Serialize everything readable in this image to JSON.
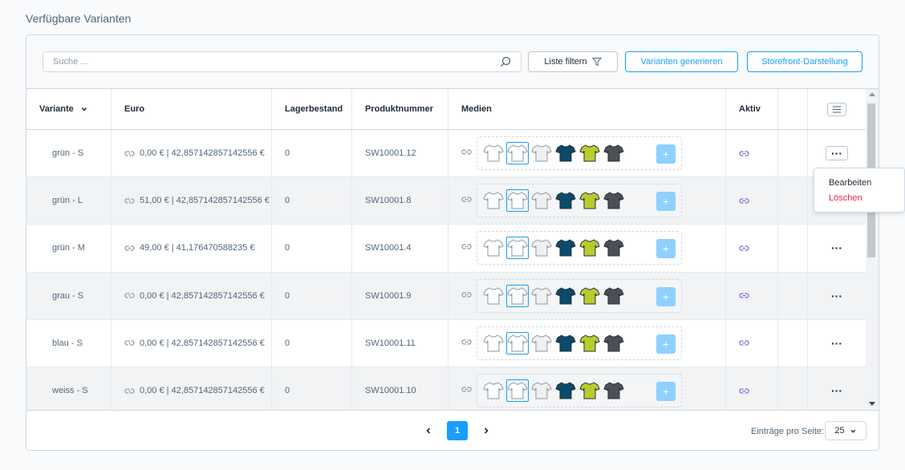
{
  "section_title": "Verfügbare Varianten",
  "search": {
    "placeholder": "Suche ...",
    "value": ""
  },
  "toolbar": {
    "filter_label": "Liste filtern",
    "generate_label": "Varianten generieren",
    "storefront_label": "Storefront-Darstellung"
  },
  "columns": {
    "variant": "Variante",
    "price": "Euro",
    "stock": "Lagerbestand",
    "number": "Produktnummer",
    "media": "Medien",
    "active": "Aktiv"
  },
  "rows": [
    {
      "variant": "grün - S",
      "price": "0,00 € | 42,857142857142556 €",
      "stock": "0",
      "number": "SW10001.12",
      "price_inherited": false
    },
    {
      "variant": "grün - L",
      "price": "51,00 € | 42,857142857142556 €",
      "stock": "0",
      "number": "SW10001.8",
      "price_inherited": false
    },
    {
      "variant": "grün - M",
      "price": "49,00 € | 41,176470588235 €",
      "stock": "0",
      "number": "SW10001.4",
      "price_inherited": true
    },
    {
      "variant": "grau - S",
      "price": "0,00 € | 42,857142857142556 €",
      "stock": "0",
      "number": "SW10001.9",
      "price_inherited": false
    },
    {
      "variant": "blau - S",
      "price": "0,00 € | 42,857142857142556 €",
      "stock": "0",
      "number": "SW10001.11",
      "price_inherited": false
    },
    {
      "variant": "weiss - S",
      "price": "0,00 € | 42,857142857142556 €",
      "stock": "0",
      "number": "SW10001.10",
      "price_inherited": false
    }
  ],
  "media_colors": [
    "#ffffff",
    "#ffffff",
    "#f0f0f0",
    "#0b4a6b",
    "#b9cc2e",
    "#4a5056"
  ],
  "context_menu": {
    "edit": "Bearbeiten",
    "delete": "Löschen"
  },
  "pagination": {
    "current_page": "1",
    "per_page_label": "Einträge pro Seite:",
    "per_page_value": "25"
  },
  "colors": {
    "accent": "#189eff",
    "danger": "#de294c",
    "text": "#52667a",
    "active_link": "#7e6bd6"
  }
}
